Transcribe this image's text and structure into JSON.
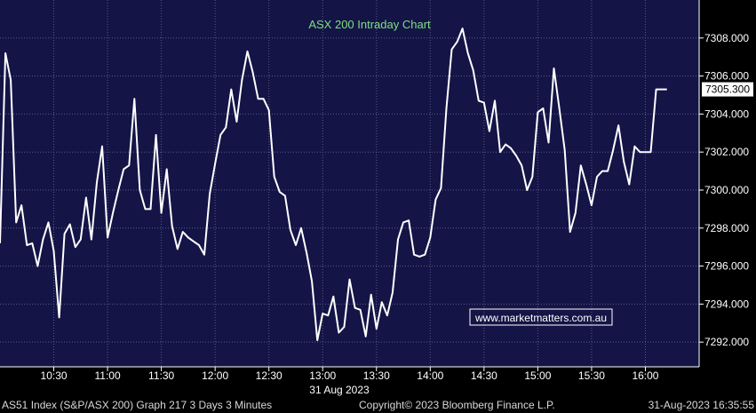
{
  "chart_data": {
    "type": "line",
    "title": "ASX 200 Intraday Chart",
    "watermark": "www.marketmatters.com.au",
    "date_label": "31 Aug 2023",
    "x_ticks": [
      "10:30",
      "11:00",
      "11:30",
      "12:00",
      "12:30",
      "13:00",
      "13:30",
      "14:00",
      "14:30",
      "15:00",
      "15:30",
      "16:00"
    ],
    "y_ticks": [
      "7292.000",
      "7294.000",
      "7296.000",
      "7298.000",
      "7300.000",
      "7302.000",
      "7304.000",
      "7306.000",
      "7308.000"
    ],
    "ylim": [
      7290.7,
      7310.0
    ],
    "xlim": [
      "10:00",
      "16:30"
    ],
    "last_value": "7305.300",
    "grid": true,
    "colors": {
      "background": "#141447",
      "line": "#ffffff",
      "grid": "#5c5c80",
      "title": "#7de07d",
      "label_box": "#ffffff"
    },
    "series": [
      {
        "x": [
          "10:00",
          "10:03",
          "10:06",
          "10:09",
          "10:12",
          "10:15",
          "10:18",
          "10:21",
          "10:24",
          "10:27",
          "10:30",
          "10:33",
          "10:36",
          "10:39",
          "10:42",
          "10:45",
          "10:48",
          "10:51",
          "10:54",
          "10:57",
          "11:00",
          "11:03",
          "11:06",
          "11:09",
          "11:12",
          "11:15",
          "11:18",
          "11:21",
          "11:24",
          "11:27",
          "11:30",
          "11:33",
          "11:36",
          "11:39",
          "11:42",
          "11:45",
          "11:48",
          "11:51",
          "11:54",
          "11:57",
          "12:00",
          "12:03",
          "12:06",
          "12:09",
          "12:12",
          "12:15",
          "12:18",
          "12:21",
          "12:24",
          "12:27",
          "12:30",
          "12:33",
          "12:36",
          "12:39",
          "12:42",
          "12:45",
          "12:48",
          "12:51",
          "12:54",
          "12:57",
          "13:00",
          "13:03",
          "13:06",
          "13:09",
          "13:12",
          "13:15",
          "13:18",
          "13:21",
          "13:24",
          "13:27",
          "13:30",
          "13:33",
          "13:36",
          "13:39",
          "13:42",
          "13:45",
          "13:48",
          "13:51",
          "13:54",
          "13:57",
          "14:00",
          "14:03",
          "14:06",
          "14:09",
          "14:12",
          "14:15",
          "14:18",
          "14:21",
          "14:24",
          "14:27",
          "14:30",
          "14:33",
          "14:36",
          "14:39",
          "14:42",
          "14:45",
          "14:48",
          "14:51",
          "14:54",
          "14:57",
          "15:00",
          "15:03",
          "15:06",
          "15:09",
          "15:12",
          "15:15",
          "15:18",
          "15:21",
          "15:24",
          "15:27",
          "15:30",
          "15:33",
          "15:36",
          "15:39",
          "15:42",
          "15:45",
          "15:48",
          "15:51",
          "15:54",
          "15:57",
          "16:00",
          "16:03",
          "16:06",
          "16:09",
          "16:12"
        ],
        "values": [
          7297.2,
          7307.2,
          7305.8,
          7298.3,
          7299.2,
          7297.1,
          7297.2,
          7296.0,
          7297.4,
          7298.3,
          7296.8,
          7293.3,
          7297.7,
          7298.2,
          7297.0,
          7297.4,
          7299.6,
          7297.4,
          7300.4,
          7302.3,
          7297.5,
          7298.8,
          7300.0,
          7301.1,
          7301.3,
          7304.8,
          7300.0,
          7299.0,
          7299.0,
          7302.9,
          7298.8,
          7301.1,
          7298.1,
          7296.9,
          7297.8,
          7297.5,
          7297.3,
          7297.1,
          7296.6,
          7299.8,
          7301.4,
          7302.9,
          7303.3,
          7305.3,
          7303.6,
          7305.8,
          7307.3,
          7306.2,
          7304.8,
          7304.8,
          7304.2,
          7300.7,
          7299.9,
          7299.7,
          7297.9,
          7297.1,
          7298.0,
          7296.7,
          7295.2,
          7292.1,
          7293.5,
          7293.4,
          7294.4,
          7292.5,
          7292.8,
          7295.3,
          7293.8,
          7293.7,
          7292.3,
          7294.5,
          7292.7,
          7294.1,
          7293.4,
          7294.6,
          7297.4,
          7298.3,
          7298.4,
          7296.6,
          7296.5,
          7296.6,
          7297.5,
          7299.5,
          7300.1,
          7304.3,
          7307.4,
          7307.8,
          7308.5,
          7307.2,
          7306.3,
          7304.7,
          7304.6,
          7303.1,
          7304.7,
          7302.0,
          7302.4,
          7302.2,
          7301.8,
          7301.3,
          7300.0,
          7300.7,
          7304.1,
          7304.3,
          7302.5,
          7306.4,
          7304.3,
          7302.1,
          7297.8,
          7298.8,
          7301.3,
          7300.3,
          7299.2,
          7300.7,
          7301.0,
          7301.0,
          7302.1,
          7303.4,
          7301.5,
          7300.3,
          7302.3,
          7302.0,
          7302.0,
          7302.0,
          7305.3,
          7305.3,
          7305.3
        ]
      }
    ]
  },
  "footer": {
    "left": "AS51 Index (S&P/ASX 200) Graph 217 3 Days 3 Minutes",
    "center": "Copyright© 2023 Bloomberg Finance L.P.",
    "right": "31-Aug-2023 16:35:55"
  }
}
